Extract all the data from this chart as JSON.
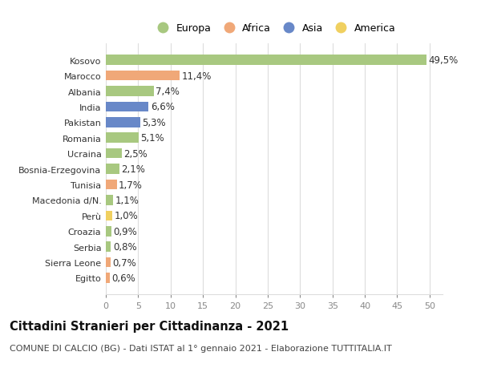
{
  "categories": [
    "Kosovo",
    "Marocco",
    "Albania",
    "India",
    "Pakistan",
    "Romania",
    "Ucraina",
    "Bosnia-Erzegovina",
    "Tunisia",
    "Macedonia d/N.",
    "Perù",
    "Croazia",
    "Serbia",
    "Sierra Leone",
    "Egitto"
  ],
  "values": [
    49.5,
    11.4,
    7.4,
    6.6,
    5.3,
    5.1,
    2.5,
    2.1,
    1.7,
    1.1,
    1.0,
    0.9,
    0.8,
    0.7,
    0.6
  ],
  "labels": [
    "49,5%",
    "11,4%",
    "7,4%",
    "6,6%",
    "5,3%",
    "5,1%",
    "2,5%",
    "2,1%",
    "1,7%",
    "1,1%",
    "1,0%",
    "0,9%",
    "0,8%",
    "0,7%",
    "0,6%"
  ],
  "continents": [
    "Europa",
    "Africa",
    "Europa",
    "Asia",
    "Asia",
    "Europa",
    "Europa",
    "Europa",
    "Africa",
    "Europa",
    "America",
    "Europa",
    "Europa",
    "Africa",
    "Africa"
  ],
  "colors": {
    "Europa": "#a8c880",
    "Africa": "#f0a878",
    "Asia": "#6888c8",
    "America": "#f0d060"
  },
  "legend_order": [
    "Europa",
    "Africa",
    "Asia",
    "America"
  ],
  "xlim": [
    0,
    52
  ],
  "xticks": [
    0,
    5,
    10,
    15,
    20,
    25,
    30,
    35,
    40,
    45,
    50
  ],
  "title": "Cittadini Stranieri per Cittadinanza - 2021",
  "subtitle": "COMUNE DI CALCIO (BG) - Dati ISTAT al 1° gennaio 2021 - Elaborazione TUTTITALIA.IT",
  "background_color": "#ffffff",
  "grid_color": "#dddddd",
  "bar_height": 0.65,
  "label_fontsize": 8.5,
  "tick_fontsize": 8,
  "title_fontsize": 10.5,
  "subtitle_fontsize": 8,
  "legend_fontsize": 9
}
